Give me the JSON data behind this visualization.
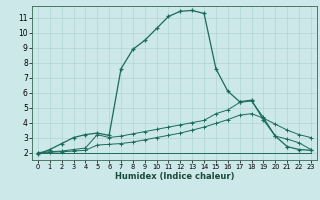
{
  "xlabel": "Humidex (Indice chaleur)",
  "bg_color": "#cce8e8",
  "grid_color": "#b0d4d4",
  "line_color": "#1a6b5a",
  "xlim": [
    -0.5,
    23.5
  ],
  "ylim": [
    1.5,
    11.8
  ],
  "yticks": [
    2,
    3,
    4,
    5,
    6,
    7,
    8,
    9,
    10,
    11
  ],
  "xticks": [
    0,
    1,
    2,
    3,
    4,
    5,
    6,
    7,
    8,
    9,
    10,
    11,
    12,
    13,
    14,
    15,
    16,
    17,
    18,
    19,
    20,
    21,
    22,
    23
  ],
  "line1_x": [
    0,
    1,
    2,
    3,
    4,
    5,
    6,
    7,
    8,
    9,
    10,
    11,
    12,
    13,
    14,
    15,
    16,
    17,
    18,
    19,
    20,
    21,
    22,
    23
  ],
  "line1_y": [
    1.9,
    2.2,
    2.6,
    3.0,
    3.2,
    3.3,
    3.15,
    7.6,
    8.9,
    9.5,
    10.3,
    11.1,
    11.45,
    11.5,
    11.3,
    7.6,
    6.1,
    5.4,
    5.5,
    4.2,
    3.1,
    2.4,
    2.2,
    2.15
  ],
  "line2_x": [
    0,
    4,
    23
  ],
  "line2_y": [
    2.0,
    2.0,
    2.0
  ],
  "line3_x": [
    0,
    1,
    2,
    3,
    4,
    5,
    6,
    7,
    8,
    9,
    10,
    11,
    12,
    13,
    14,
    15,
    16,
    17,
    18,
    19,
    20,
    21,
    22,
    23
  ],
  "line3_y": [
    2.0,
    2.05,
    2.1,
    2.2,
    2.3,
    3.2,
    3.0,
    3.1,
    3.25,
    3.4,
    3.55,
    3.7,
    3.85,
    4.0,
    4.15,
    4.6,
    4.85,
    5.35,
    5.45,
    4.35,
    3.1,
    2.9,
    2.65,
    2.2
  ],
  "line4_x": [
    0,
    1,
    2,
    3,
    4,
    5,
    6,
    7,
    8,
    9,
    10,
    11,
    12,
    13,
    14,
    15,
    16,
    17,
    18,
    19,
    20,
    21,
    22,
    23
  ],
  "line4_y": [
    2.0,
    2.02,
    2.05,
    2.1,
    2.15,
    2.5,
    2.55,
    2.6,
    2.7,
    2.85,
    3.0,
    3.15,
    3.3,
    3.5,
    3.7,
    3.95,
    4.2,
    4.5,
    4.6,
    4.3,
    3.9,
    3.5,
    3.2,
    3.0
  ]
}
